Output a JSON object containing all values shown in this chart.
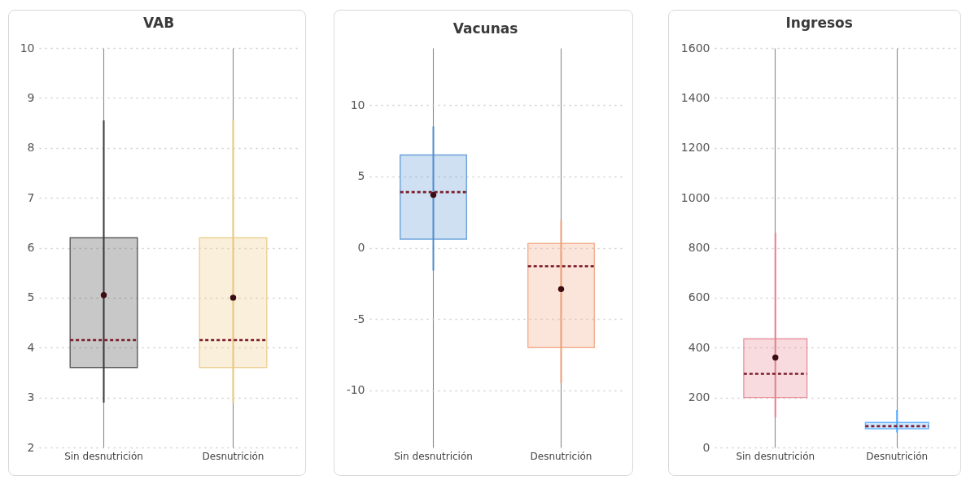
{
  "chart_data": [
    {
      "type": "box",
      "title": "VAB",
      "categories": [
        "Sin desnutrición",
        "Desnutrición"
      ],
      "boxes": [
        {
          "low": 2.9,
          "q1": 3.6,
          "median": 4.15,
          "q3": 6.2,
          "high": 8.55,
          "mean": 5.05
        },
        {
          "low": 2.9,
          "q1": 3.6,
          "median": 4.15,
          "q3": 6.2,
          "high": 8.55,
          "mean": 5.0
        }
      ],
      "colors": [
        "#3a3a3a",
        "#e9c77e"
      ],
      "ylim": [
        2,
        10
      ],
      "yticks": [
        2,
        3,
        4,
        5,
        6,
        7,
        8,
        9,
        10
      ],
      "grid": true
    },
    {
      "type": "box",
      "title": "Vacunas",
      "categories": [
        "Sin desnutrición",
        "Desnutrición"
      ],
      "boxes": [
        {
          "low": -1.6,
          "q1": 0.6,
          "median": 3.9,
          "q3": 6.5,
          "high": 8.5,
          "mean": 3.7
        },
        {
          "low": -9.5,
          "q1": -7.0,
          "median": -1.3,
          "q3": 0.3,
          "high": 1.9,
          "mean": -2.9
        }
      ],
      "colors": [
        "#4f8fd0",
        "#ef9f78"
      ],
      "ylim": [
        -14,
        14
      ],
      "yticks": [
        -10,
        -5,
        0,
        5,
        10
      ],
      "grid": true
    },
    {
      "type": "box",
      "title": "Ingresos",
      "categories": [
        "Sin desnutrición",
        "Desnutrición"
      ],
      "boxes": [
        {
          "low": 120,
          "q1": 200,
          "median": 295,
          "q3": 435,
          "high": 860,
          "mean": 360
        },
        {
          "low": 60,
          "q1": 75,
          "median": 85,
          "q3": 100,
          "high": 150
        }
      ],
      "colors": [
        "#e57f8c",
        "#4da6ff"
      ],
      "ylim": [
        0,
        1600
      ],
      "yticks": [
        0,
        200,
        400,
        600,
        800,
        1000,
        1200,
        1400,
        1600
      ],
      "grid": true
    }
  ]
}
